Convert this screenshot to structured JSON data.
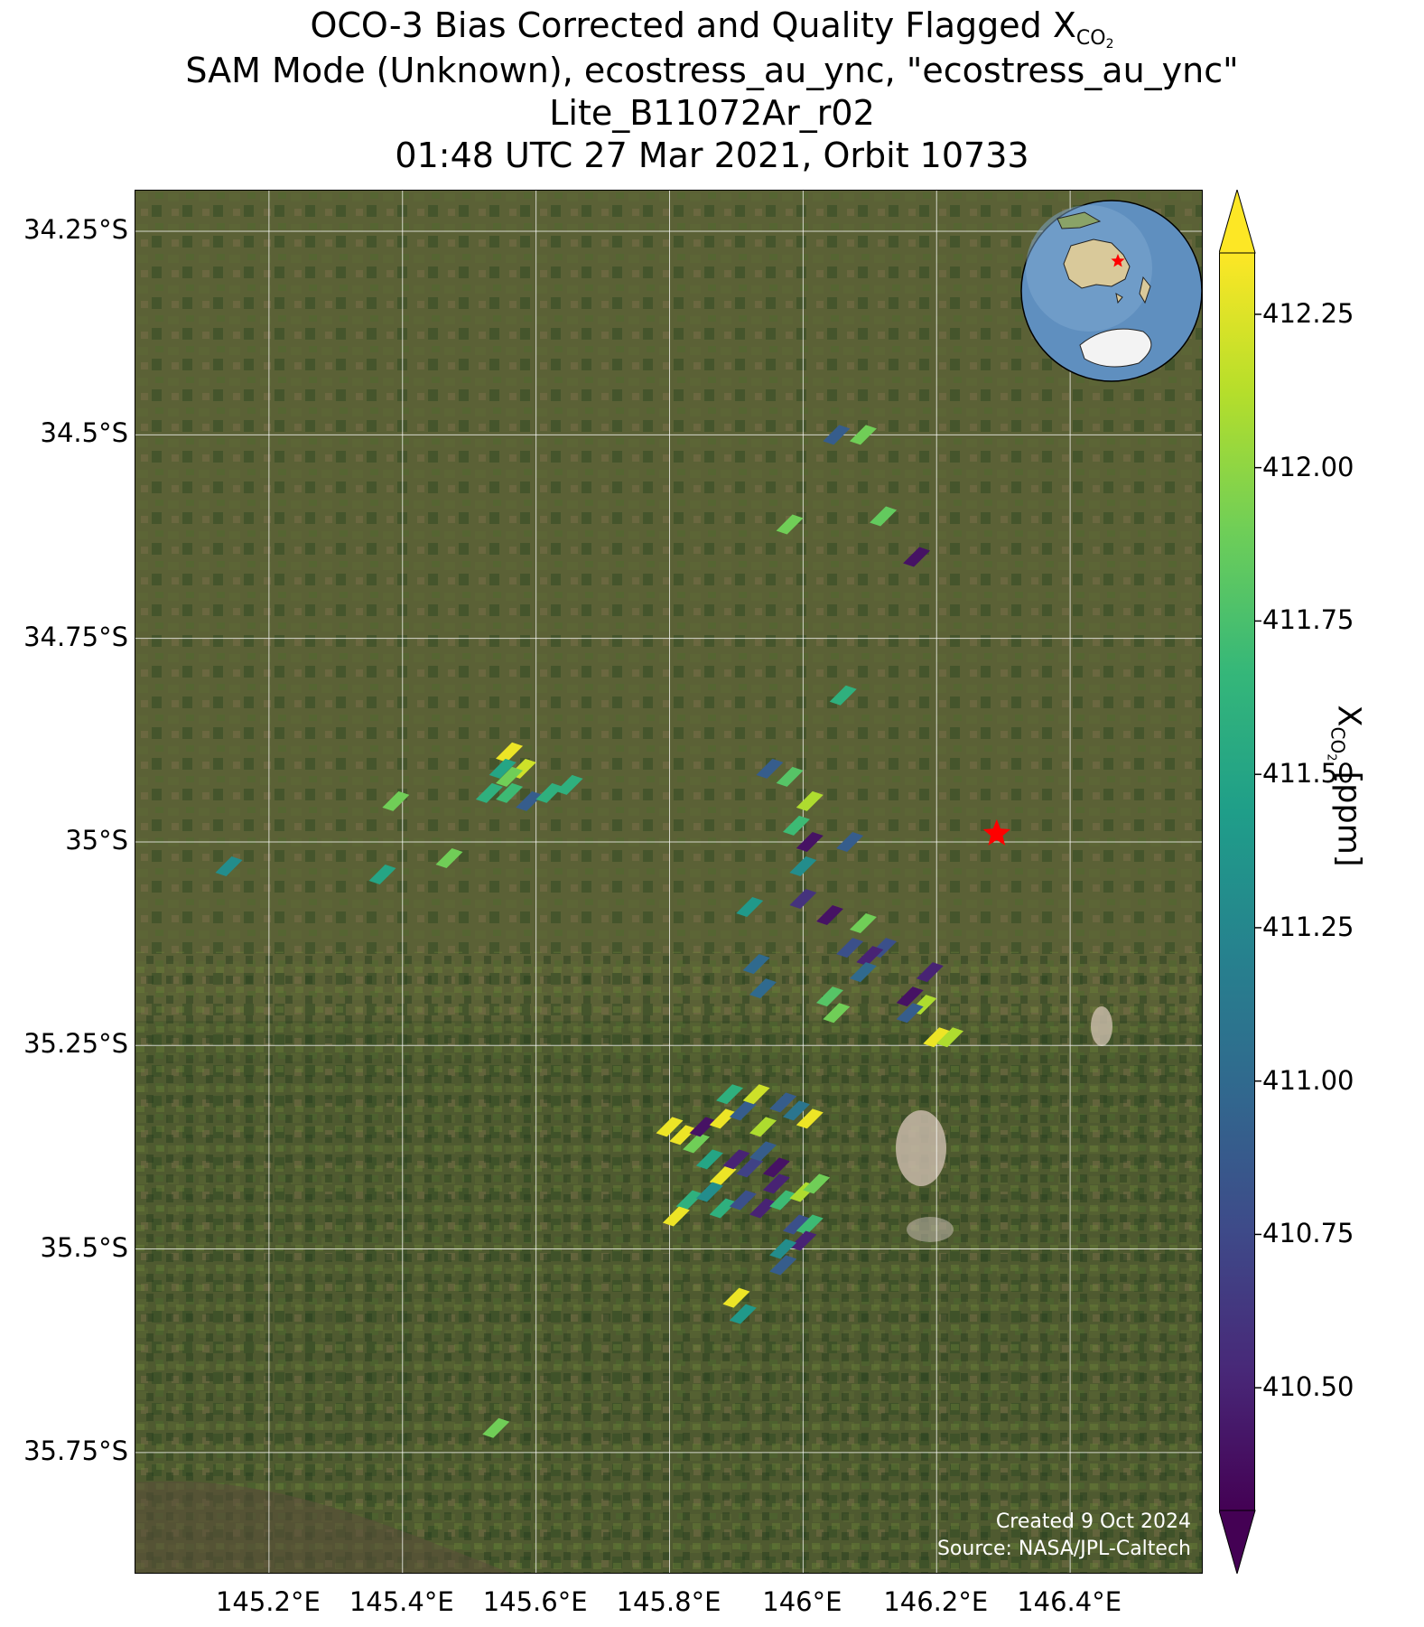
{
  "title": {
    "line1_prefix": "OCO-3 Bias Corrected and Quality Flagged X",
    "line1_sub": "CO",
    "line1_subsub": "2",
    "line2": "SAM Mode (Unknown), ecostress_au_ync, \"ecostress_au_ync\"",
    "line3": "Lite_B11072Ar_r02",
    "line4": "01:48 UTC 27 Mar 2021, Orbit 10733"
  },
  "map": {
    "lat_range": [
      -35.9,
      -34.2
    ],
    "lon_range": [
      145.0,
      146.6
    ],
    "lat_ticks": [
      {
        "value": -34.25,
        "label": "34.25°S"
      },
      {
        "value": -34.5,
        "label": "34.5°S"
      },
      {
        "value": -34.75,
        "label": "34.75°S"
      },
      {
        "value": -35.0,
        "label": "35°S"
      },
      {
        "value": -35.25,
        "label": "35.25°S"
      },
      {
        "value": -35.5,
        "label": "35.5°S"
      },
      {
        "value": -35.75,
        "label": "35.75°S"
      }
    ],
    "lon_ticks": [
      {
        "value": 145.2,
        "label": "145.2°E"
      },
      {
        "value": 145.4,
        "label": "145.4°E"
      },
      {
        "value": 145.6,
        "label": "145.6°E"
      },
      {
        "value": 145.8,
        "label": "145.8°E"
      },
      {
        "value": 146.0,
        "label": "146°E"
      },
      {
        "value": 146.2,
        "label": "146.2°E"
      },
      {
        "value": 146.4,
        "label": "146.4°E"
      }
    ],
    "target_marker": {
      "lon": 146.29,
      "lat": -34.99,
      "color": "#ff0000",
      "icon": "star-icon"
    },
    "background": "satellite-imagery",
    "gridlines": true
  },
  "chart_data": {
    "type": "scatter",
    "colorbar": {
      "min": 410.3,
      "max": 412.35,
      "ticks": [
        410.5,
        410.75,
        411.0,
        411.25,
        411.5,
        411.75,
        412.0,
        412.25
      ]
    },
    "soundings": [
      {
        "lon": 146.05,
        "lat": -34.5,
        "xco2": 410.9
      },
      {
        "lon": 146.09,
        "lat": -34.5,
        "xco2": 411.9
      },
      {
        "lon": 145.98,
        "lat": -34.61,
        "xco2": 411.9
      },
      {
        "lon": 146.12,
        "lat": -34.6,
        "xco2": 411.85
      },
      {
        "lon": 146.17,
        "lat": -34.65,
        "xco2": 410.4
      },
      {
        "lon": 146.06,
        "lat": -34.82,
        "xco2": 411.6
      },
      {
        "lon": 145.56,
        "lat": -34.89,
        "xco2": 412.3
      },
      {
        "lon": 145.55,
        "lat": -34.91,
        "xco2": 411.5
      },
      {
        "lon": 145.58,
        "lat": -34.91,
        "xco2": 412.2
      },
      {
        "lon": 145.56,
        "lat": -34.92,
        "xco2": 411.9
      },
      {
        "lon": 145.53,
        "lat": -34.94,
        "xco2": 411.6
      },
      {
        "lon": 145.56,
        "lat": -34.94,
        "xco2": 411.7
      },
      {
        "lon": 145.59,
        "lat": -34.95,
        "xco2": 410.9
      },
      {
        "lon": 145.62,
        "lat": -34.94,
        "xco2": 411.6
      },
      {
        "lon": 145.65,
        "lat": -34.93,
        "xco2": 411.6
      },
      {
        "lon": 145.39,
        "lat": -34.95,
        "xco2": 411.9
      },
      {
        "lon": 145.14,
        "lat": -35.03,
        "xco2": 411.3
      },
      {
        "lon": 145.37,
        "lat": -35.04,
        "xco2": 411.5
      },
      {
        "lon": 145.47,
        "lat": -35.02,
        "xco2": 411.9
      },
      {
        "lon": 145.95,
        "lat": -34.91,
        "xco2": 410.9
      },
      {
        "lon": 145.98,
        "lat": -34.92,
        "xco2": 411.8
      },
      {
        "lon": 146.01,
        "lat": -34.95,
        "xco2": 412.1
      },
      {
        "lon": 145.99,
        "lat": -34.98,
        "xco2": 411.7
      },
      {
        "lon": 146.01,
        "lat": -35.0,
        "xco2": 410.4
      },
      {
        "lon": 146.0,
        "lat": -35.03,
        "xco2": 411.3
      },
      {
        "lon": 146.07,
        "lat": -35.0,
        "xco2": 410.9
      },
      {
        "lon": 145.92,
        "lat": -35.08,
        "xco2": 411.4
      },
      {
        "lon": 146.0,
        "lat": -35.07,
        "xco2": 410.6
      },
      {
        "lon": 146.04,
        "lat": -35.09,
        "xco2": 410.4
      },
      {
        "lon": 146.09,
        "lat": -35.1,
        "xco2": 411.9
      },
      {
        "lon": 146.07,
        "lat": -35.13,
        "xco2": 410.8
      },
      {
        "lon": 146.12,
        "lat": -35.13,
        "xco2": 410.8
      },
      {
        "lon": 146.1,
        "lat": -35.14,
        "xco2": 410.5
      },
      {
        "lon": 146.09,
        "lat": -35.16,
        "xco2": 411.0
      },
      {
        "lon": 145.93,
        "lat": -35.15,
        "xco2": 411.0
      },
      {
        "lon": 145.94,
        "lat": -35.18,
        "xco2": 411.0
      },
      {
        "lon": 146.04,
        "lat": -35.19,
        "xco2": 411.8
      },
      {
        "lon": 146.05,
        "lat": -35.21,
        "xco2": 411.9
      },
      {
        "lon": 146.19,
        "lat": -35.16,
        "xco2": 410.5
      },
      {
        "lon": 146.16,
        "lat": -35.19,
        "xco2": 410.4
      },
      {
        "lon": 146.18,
        "lat": -35.2,
        "xco2": 412.1
      },
      {
        "lon": 146.16,
        "lat": -35.21,
        "xco2": 410.9
      },
      {
        "lon": 146.2,
        "lat": -35.24,
        "xco2": 412.3
      },
      {
        "lon": 146.22,
        "lat": -35.24,
        "xco2": 412.1
      },
      {
        "lon": 145.8,
        "lat": -35.35,
        "xco2": 412.3
      },
      {
        "lon": 145.82,
        "lat": -35.36,
        "xco2": 412.3
      },
      {
        "lon": 145.84,
        "lat": -35.37,
        "xco2": 411.9
      },
      {
        "lon": 145.85,
        "lat": -35.35,
        "xco2": 410.4
      },
      {
        "lon": 145.88,
        "lat": -35.34,
        "xco2": 412.3
      },
      {
        "lon": 145.89,
        "lat": -35.31,
        "xco2": 411.6
      },
      {
        "lon": 145.91,
        "lat": -35.33,
        "xco2": 410.9
      },
      {
        "lon": 145.93,
        "lat": -35.31,
        "xco2": 412.2
      },
      {
        "lon": 145.94,
        "lat": -35.35,
        "xco2": 412.1
      },
      {
        "lon": 145.97,
        "lat": -35.32,
        "xco2": 410.9
      },
      {
        "lon": 145.99,
        "lat": -35.33,
        "xco2": 411.1
      },
      {
        "lon": 146.01,
        "lat": -35.34,
        "xco2": 412.3
      },
      {
        "lon": 145.86,
        "lat": -35.39,
        "xco2": 411.5
      },
      {
        "lon": 145.88,
        "lat": -35.41,
        "xco2": 412.3
      },
      {
        "lon": 145.9,
        "lat": -35.39,
        "xco2": 410.5
      },
      {
        "lon": 145.92,
        "lat": -35.4,
        "xco2": 410.7
      },
      {
        "lon": 145.94,
        "lat": -35.38,
        "xco2": 410.9
      },
      {
        "lon": 145.96,
        "lat": -35.4,
        "xco2": 410.4
      },
      {
        "lon": 145.96,
        "lat": -35.42,
        "xco2": 410.5
      },
      {
        "lon": 145.83,
        "lat": -35.44,
        "xco2": 411.6
      },
      {
        "lon": 145.86,
        "lat": -35.43,
        "xco2": 411.3
      },
      {
        "lon": 145.88,
        "lat": -35.45,
        "xco2": 411.6
      },
      {
        "lon": 145.91,
        "lat": -35.44,
        "xco2": 410.8
      },
      {
        "lon": 145.81,
        "lat": -35.46,
        "xco2": 412.3
      },
      {
        "lon": 145.94,
        "lat": -35.45,
        "xco2": 410.5
      },
      {
        "lon": 145.97,
        "lat": -35.44,
        "xco2": 411.7
      },
      {
        "lon": 146.0,
        "lat": -35.43,
        "xco2": 412.1
      },
      {
        "lon": 146.02,
        "lat": -35.42,
        "xco2": 411.9
      },
      {
        "lon": 145.99,
        "lat": -35.47,
        "xco2": 410.8
      },
      {
        "lon": 146.01,
        "lat": -35.47,
        "xco2": 411.7
      },
      {
        "lon": 146.0,
        "lat": -35.49,
        "xco2": 410.5
      },
      {
        "lon": 145.97,
        "lat": -35.5,
        "xco2": 411.3
      },
      {
        "lon": 145.97,
        "lat": -35.52,
        "xco2": 410.9
      },
      {
        "lon": 145.9,
        "lat": -35.56,
        "xco2": 412.3
      },
      {
        "lon": 145.91,
        "lat": -35.58,
        "xco2": 411.4
      },
      {
        "lon": 145.54,
        "lat": -35.72,
        "xco2": 411.9
      }
    ]
  },
  "colorbar": {
    "label_prefix": "X",
    "label_sub": "CO",
    "label_subsub": "2",
    "label_suffix": " [ppm]",
    "tick_labels": [
      "412.25",
      "412.00",
      "411.75",
      "411.50",
      "411.25",
      "411.00",
      "410.75",
      "410.50"
    ]
  },
  "credits": {
    "created": "Created 9 Oct 2024",
    "source": "Source: NASA/JPL-Caltech"
  },
  "inset": {
    "icon": "globe-inset-icon",
    "marker_color": "#ff0000"
  }
}
